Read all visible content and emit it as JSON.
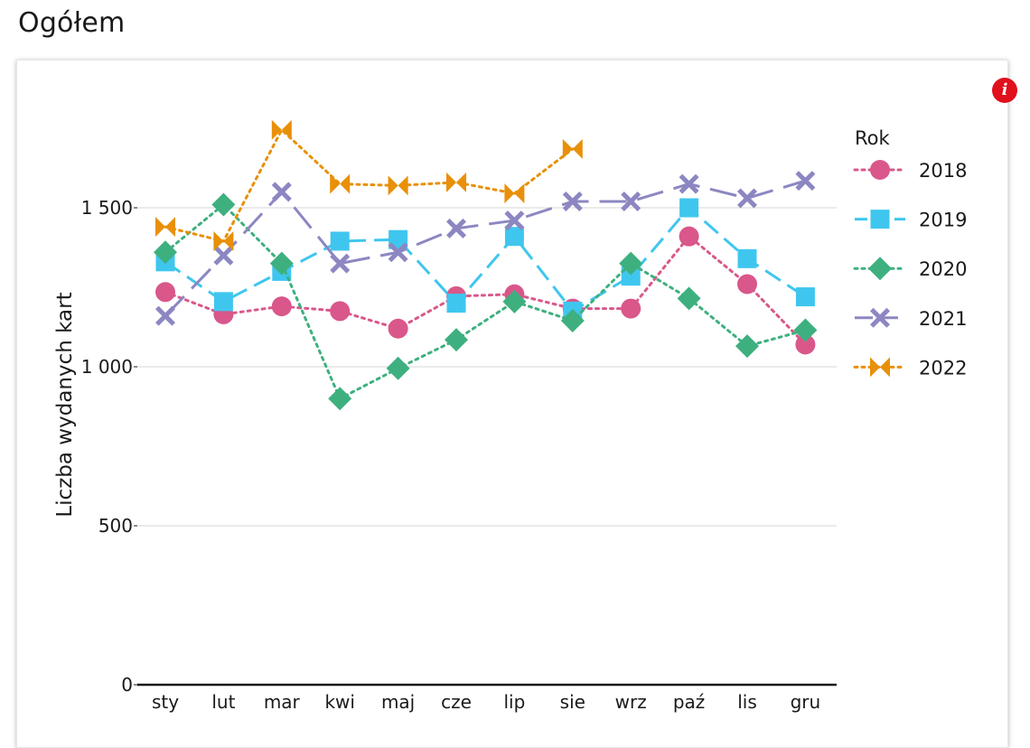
{
  "page": {
    "title": "Ogółem",
    "info_icon": "info-icon",
    "info_glyph": "i"
  },
  "chart_data": {
    "type": "line",
    "title": "",
    "xlabel": "",
    "ylabel": "Liczba wydanych kart",
    "categories": [
      "sty",
      "lut",
      "mar",
      "kwi",
      "maj",
      "cze",
      "lip",
      "sie",
      "wrz",
      "paź",
      "lis",
      "gru"
    ],
    "ylim": [
      0,
      1850
    ],
    "yticks": [
      0,
      500,
      1000,
      1500
    ],
    "ytick_labels": [
      "0",
      "500",
      "1 000",
      "1 500"
    ],
    "grid": "horizontal",
    "legend": {
      "title": "Rok",
      "placement": "right"
    },
    "series": [
      {
        "name": "2018",
        "color": "#d9578a",
        "marker": "circle",
        "dash": "dotted",
        "values": [
          1235,
          1165,
          1190,
          1175,
          1120,
          1222,
          1228,
          1183,
          1183,
          1410,
          1260,
          1070
        ]
      },
      {
        "name": "2019",
        "color": "#3fc6ef",
        "marker": "square",
        "dash": "dashed",
        "values": [
          1330,
          1205,
          1300,
          1395,
          1400,
          1200,
          1410,
          1175,
          1285,
          1500,
          1340,
          1220
        ]
      },
      {
        "name": "2020",
        "color": "#3eb07f",
        "marker": "diamond",
        "dash": "dotted",
        "values": [
          1360,
          1510,
          1325,
          900,
          995,
          1085,
          1205,
          1145,
          1325,
          1215,
          1065,
          1115
        ]
      },
      {
        "name": "2021",
        "color": "#8c87c2",
        "marker": "x",
        "dash": "longdash",
        "values": [
          1160,
          1350,
          1550,
          1325,
          1360,
          1435,
          1460,
          1520,
          1520,
          1575,
          1530,
          1585
        ]
      },
      {
        "name": "2022",
        "color": "#e8900a",
        "marker": "bowtie",
        "dash": "dotted",
        "values": [
          1440,
          1395,
          1745,
          1575,
          1570,
          1580,
          1545,
          1685,
          null,
          null,
          null,
          null
        ]
      }
    ]
  }
}
